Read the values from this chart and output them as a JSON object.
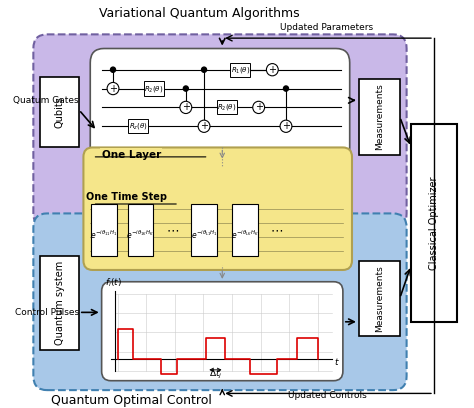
{
  "title_top": "Variational Quantum Algorithms",
  "title_bottom": "Quantum Optimal Control",
  "label_qubits": "Qubits",
  "label_quantum_system": "Quantum system",
  "label_classical_optimizer": "Classical Optimizer",
  "label_quatum_gates": "Quatum Gates",
  "label_control_pulses": "Control Pulses",
  "label_one_layer": "One Layer",
  "label_one_time_step": "One Time Step",
  "label_measurements_top": "Measurements",
  "label_measurements_bottom": "Measurements",
  "label_updated_parameters": "Updated Parameters",
  "label_updated_controls": "Updated Controls",
  "color_purple_bg": "#c9b8e8",
  "color_blue_bg": "#a8c8e8",
  "color_yellow_bg": "#f5e68a",
  "color_white": "#ffffff",
  "color_black": "#000000",
  "color_gray_border": "#888888",
  "color_red": "#dd0000",
  "color_light_gray": "#f0f0f0",
  "figsize": [
    4.74,
    4.08
  ],
  "dpi": 100
}
